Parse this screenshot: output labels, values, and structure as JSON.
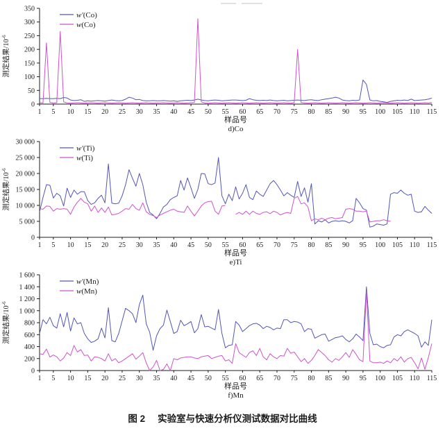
{
  "page": {
    "caption_fig": "图 2",
    "caption_text": "实验室与快速分析仪测试数据对比曲线"
  },
  "colors": {
    "accent_blue": "#5156b4",
    "accent_magenta": "#cf52cb",
    "axis": "#1c1c1c"
  },
  "chart_data": [
    {
      "type": "line",
      "sub_caption": "d)Co",
      "xlabel": "样品号",
      "ylabel_base": "测定结果/10",
      "ylabel_exp": "-6",
      "ylim": [
        0,
        350
      ],
      "yticks": {
        "values": [
          0,
          50,
          100,
          150,
          200,
          250,
          300,
          350
        ],
        "labels": [
          "0",
          "50",
          "100",
          "150",
          "200",
          "250",
          "300",
          "350"
        ]
      },
      "xticks": [
        1,
        5,
        10,
        15,
        20,
        25,
        30,
        35,
        40,
        45,
        50,
        55,
        60,
        65,
        70,
        75,
        80,
        85,
        90,
        95,
        100,
        105,
        110,
        115
      ],
      "legend_position": "top-left",
      "grid": false,
      "series": [
        {
          "name": "w'(Co)",
          "sym": "w′",
          "rest": "(Co)",
          "color": "#5156b4",
          "values": [
            20,
            20,
            21,
            20,
            20,
            21,
            20,
            24,
            22,
            15,
            13,
            14,
            16,
            10,
            12,
            11,
            12,
            13,
            12,
            11,
            13,
            15,
            13,
            12,
            13,
            18,
            25,
            22,
            16,
            17,
            13,
            12,
            12,
            13,
            12,
            12,
            13,
            12,
            11,
            12,
            10,
            12,
            13,
            14,
            13,
            15,
            18,
            15,
            13,
            12,
            14,
            15,
            14,
            12,
            13,
            14,
            15,
            15,
            14,
            13,
            14,
            20,
            16,
            14,
            13,
            14,
            13,
            15,
            13,
            12,
            13,
            14,
            12,
            13,
            14,
            15,
            14,
            13,
            15,
            16,
            14,
            13,
            16,
            18,
            20,
            22,
            25,
            22,
            15,
            13,
            12,
            14,
            13,
            15,
            88,
            72,
            15,
            12,
            13,
            10,
            8,
            6,
            10,
            12,
            14,
            13,
            15,
            13,
            18,
            13,
            14,
            15,
            16,
            18,
            22
          ]
        },
        {
          "name": "w(Co)",
          "sym": "w",
          "rest": "(Co)",
          "color": "#cf52cb",
          "values": [
            5,
            4,
            224,
            6,
            4,
            5,
            266,
            8,
            4,
            3,
            4,
            5,
            4,
            3,
            4,
            5,
            4,
            3,
            4,
            5,
            4,
            3,
            4,
            5,
            4,
            3,
            4,
            5,
            4,
            3,
            4,
            5,
            4,
            3,
            4,
            4,
            5,
            4,
            3,
            4,
            5,
            4,
            3,
            4,
            5,
            6,
            312,
            8,
            4,
            3,
            4,
            5,
            4,
            3,
            4,
            5,
            4,
            3,
            4,
            5,
            4,
            3,
            4,
            5,
            4,
            3,
            4,
            5,
            4,
            3,
            4,
            5,
            4,
            3,
            5,
            200,
            6,
            4,
            3,
            4,
            5,
            4,
            3,
            4,
            5,
            4,
            3,
            4,
            5,
            4,
            3,
            4,
            5,
            4,
            3,
            4,
            5,
            4,
            3,
            4,
            5,
            4,
            3,
            4,
            5,
            4,
            3,
            4,
            5,
            4,
            3,
            4,
            5,
            4,
            6
          ]
        }
      ]
    },
    {
      "type": "line",
      "sub_caption": "e)Ti",
      "xlabel": "样品号",
      "ylabel_base": "测定结果/10",
      "ylabel_exp": "-6",
      "ylim": [
        0,
        30000
      ],
      "yticks": {
        "values": [
          0,
          5000,
          10000,
          15000,
          20000,
          25000,
          30000
        ],
        "labels": [
          "0",
          "5 000",
          "10 000",
          "15 000",
          "20 000",
          "25 000",
          "30 000"
        ]
      },
      "xticks": [
        1,
        5,
        10,
        15,
        20,
        25,
        30,
        35,
        40,
        45,
        50,
        55,
        60,
        65,
        70,
        75,
        80,
        85,
        90,
        95,
        100,
        105,
        110,
        115
      ],
      "legend_position": "top-left",
      "grid": false,
      "series": [
        {
          "name": "w'(Ti)",
          "sym": "w′",
          "rest": "(Ti)",
          "color": "#5156b4",
          "values": [
            8000,
            12500,
            16500,
            16300,
            12300,
            13800,
            13000,
            9800,
            15400,
            12500,
            14800,
            13500,
            14300,
            14300,
            11500,
            10300,
            10800,
            12200,
            13200,
            10800,
            23000,
            10700,
            10500,
            10700,
            13000,
            16500,
            21200,
            18500,
            16000,
            20000,
            16500,
            11000,
            7800,
            7000,
            5800,
            7500,
            9500,
            10300,
            11800,
            12500,
            13000,
            17800,
            14800,
            18600,
            15500,
            12200,
            15000,
            20000,
            19900,
            16800,
            16500,
            17000,
            25000,
            13000,
            10500,
            13500,
            11500,
            15800,
            12000,
            13800,
            16500,
            12500,
            11800,
            14500,
            13500,
            12800,
            14800,
            16800,
            17800,
            16500,
            14800,
            13000,
            14000,
            13200,
            12500,
            17500,
            12800,
            15500,
            11000,
            16800,
            4200,
            5200,
            4800,
            5500,
            4500,
            5000,
            5200,
            5000,
            5200,
            5000,
            4500,
            5200,
            12200,
            10800,
            9000,
            8500,
            3200,
            3500,
            4200,
            4000,
            3800,
            4200,
            13500,
            14000,
            13800,
            14800,
            13800,
            13200,
            13500,
            8200,
            7800,
            8000,
            9700,
            8500,
            7500
          ]
        },
        {
          "name": "w(Ti)",
          "sym": "w",
          "rest": "(Ti)",
          "color": "#cf52cb",
          "values": [
            9000,
            8800,
            9800,
            9700,
            8200,
            9000,
            8800,
            9000,
            8800,
            7200,
            9500,
            11000,
            12200,
            11000,
            10500,
            8200,
            9800,
            7800,
            9200,
            7800,
            9500,
            7000,
            7200,
            7500,
            8200,
            9000,
            8800,
            10300,
            9000,
            8500,
            10800,
            8000,
            7200,
            6800,
            6200,
            7000,
            7500,
            8000,
            8500,
            8800,
            8200,
            8000,
            7800,
            9800,
            8200,
            6700,
            8200,
            9800,
            10800,
            11200,
            11300,
            8200,
            7200,
            9800,
            10000,
            null,
            null,
            7200,
            7800,
            7200,
            8200,
            7200,
            8200,
            7500,
            7200,
            7800,
            8000,
            7400,
            8200,
            7800,
            7000,
            7500,
            7800,
            7500,
            12200,
            12800,
            10500,
            10800,
            9500,
            5200,
            5800,
            5500,
            6000,
            5500,
            6000,
            6200,
            5800,
            6000,
            6200,
            8800,
            9000,
            8800,
            8200,
            8200,
            8000,
            8200,
            4800,
            5000,
            5200,
            5200,
            5500,
            5200,
            5000,
            null,
            null,
            null,
            null,
            null,
            null,
            null,
            null,
            null,
            null,
            null,
            null
          ]
        }
      ]
    },
    {
      "type": "line",
      "sub_caption": "f)Mn",
      "xlabel": "样品号",
      "ylabel_base": "测定结果/10",
      "ylabel_exp": "-6",
      "ylim": [
        0,
        1600
      ],
      "yticks": {
        "values": [
          0,
          200,
          400,
          600,
          800,
          1000,
          1200,
          1400,
          1600
        ],
        "labels": [
          "0",
          "200",
          "400",
          "600",
          "800",
          "1 000",
          "1 200",
          "1 400",
          "1 600"
        ]
      },
      "xticks": [
        1,
        5,
        10,
        15,
        20,
        25,
        30,
        35,
        40,
        45,
        50,
        55,
        60,
        65,
        70,
        75,
        80,
        85,
        90,
        95,
        100,
        105,
        110,
        115
      ],
      "legend_position": "top-left",
      "grid": false,
      "series": [
        {
          "name": "w'(Mn)",
          "sym": "w′",
          "rest": "(Mn)",
          "color": "#5156b4",
          "values": [
            620,
            850,
            780,
            890,
            750,
            710,
            950,
            730,
            970,
            660,
            880,
            780,
            800,
            620,
            530,
            470,
            490,
            530,
            710,
            545,
            1050,
            500,
            480,
            620,
            830,
            1040,
            1000,
            950,
            800,
            1100,
            1260,
            780,
            640,
            340,
            580,
            700,
            760,
            1010,
            820,
            620,
            650,
            840,
            750,
            780,
            820,
            630,
            700,
            935,
            730,
            740,
            710,
            680,
            1020,
            620,
            380,
            420,
            430,
            820,
            760,
            650,
            700,
            750,
            780,
            790,
            760,
            700,
            740,
            720,
            680,
            710,
            700,
            850,
            850,
            800,
            820,
            810,
            780,
            650,
            700,
            690,
            540,
            570,
            600,
            610,
            490,
            520,
            550,
            560,
            580,
            520,
            480,
            530,
            610,
            560,
            500,
            1400,
            620,
            430,
            440,
            400,
            380,
            420,
            430,
            560,
            600,
            580,
            650,
            680,
            650,
            620,
            580,
            390,
            480,
            420,
            850
          ]
        },
        {
          "name": "w(Mn)",
          "sym": "w",
          "rest": "(Mn)",
          "color": "#cf52cb",
          "values": [
            280,
            270,
            360,
            225,
            260,
            230,
            160,
            210,
            300,
            250,
            420,
            310,
            350,
            250,
            260,
            160,
            230,
            220,
            200,
            160,
            280,
            160,
            200,
            130,
            160,
            200,
            240,
            280,
            190,
            240,
            300,
            130,
            0,
            60,
            170,
            0,
            20,
            110,
            0,
            200,
            180,
            210,
            220,
            230,
            230,
            210,
            200,
            230,
            240,
            250,
            200,
            220,
            240,
            250,
            160,
            180,
            120,
            450,
            300,
            260,
            220,
            300,
            330,
            250,
            370,
            230,
            180,
            280,
            230,
            200,
            250,
            240,
            370,
            290,
            310,
            230,
            150,
            200,
            120,
            170,
            250,
            350,
            300,
            250,
            180,
            140,
            200,
            170,
            230,
            300,
            220,
            350,
            270,
            180,
            150,
            1320,
            160,
            130,
            130,
            140,
            120,
            160,
            130,
            200,
            160,
            230,
            140,
            200,
            220,
            130,
            30,
            210,
            20,
            220,
            450
          ]
        }
      ]
    }
  ]
}
